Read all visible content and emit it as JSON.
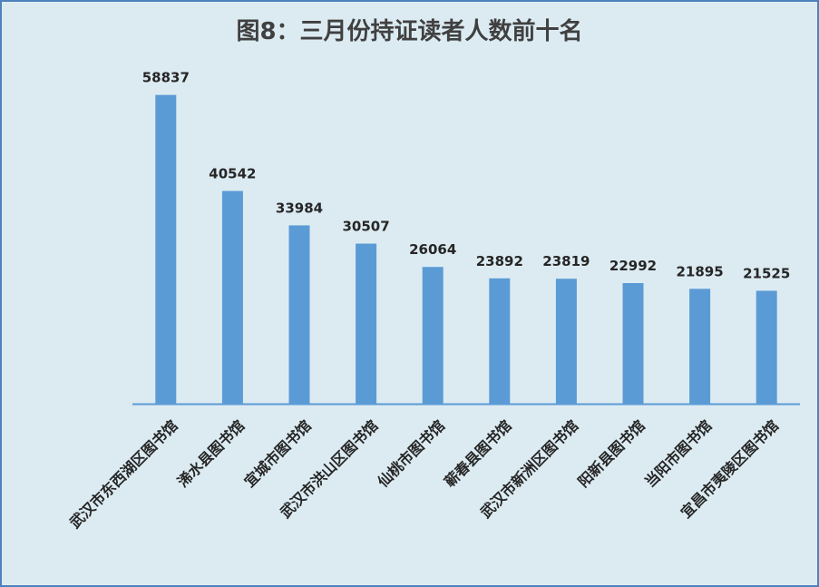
{
  "chart_data": {
    "type": "bar",
    "title": "图8：三月份持证读者人数前十名",
    "categories": [
      "武汉市东西湖区图书馆",
      "浠水县图书馆",
      "宜城市图书馆",
      "武汉市洪山区图书馆",
      "仙桃市图书馆",
      "蕲春县图书馆",
      "武汉市新洲区图书馆",
      "阳新县图书馆",
      "当阳市图书馆",
      "宜昌市夷陵区图书馆"
    ],
    "values": [
      58837,
      40542,
      33984,
      30507,
      26064,
      23892,
      23819,
      22992,
      21895,
      21525
    ],
    "ylim": [
      0,
      65000
    ],
    "xlabel": "",
    "ylabel": "",
    "grid": false,
    "legend": "none",
    "bar_color": "#5b9bd5",
    "background_color": "#dcebf2",
    "border_color": "#4f81bd",
    "axis_color": "#5b9bd5"
  }
}
